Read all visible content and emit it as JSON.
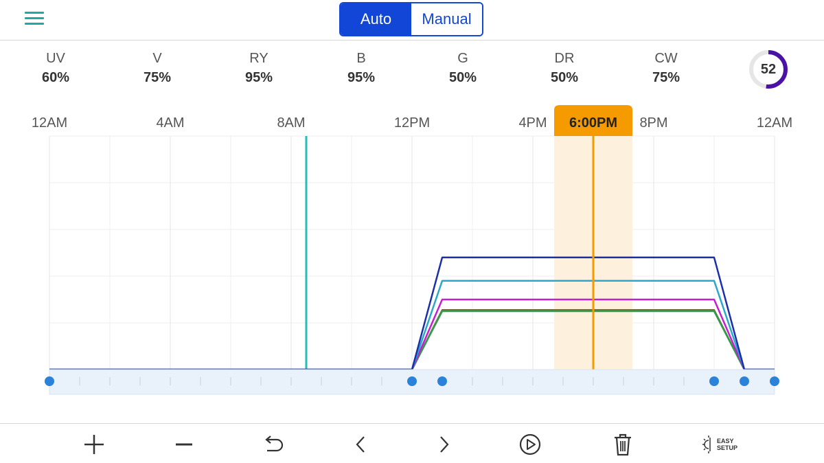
{
  "header": {
    "mode_options": [
      "Auto",
      "Manual"
    ],
    "selected_mode": "Auto"
  },
  "channels": [
    {
      "name": "UV",
      "value": "60%"
    },
    {
      "name": "V",
      "value": "75%"
    },
    {
      "name": "RY",
      "value": "95%"
    },
    {
      "name": "B",
      "value": "95%"
    },
    {
      "name": "G",
      "value": "50%"
    },
    {
      "name": "DR",
      "value": "50%"
    },
    {
      "name": "CW",
      "value": "75%"
    }
  ],
  "overall_intensity": {
    "value": "52",
    "fraction": 0.52,
    "ring_color": "#4b12a6"
  },
  "timeline": {
    "tick_labels": [
      "12AM",
      "4AM",
      "8AM",
      "12PM",
      "4PM",
      "6:00PM",
      "8PM",
      "12AM"
    ],
    "current_time_label": "6:00PM",
    "cursor_color": "#f59b00",
    "current_time_marker_color": "#26bdb6"
  },
  "chart_data": {
    "type": "line",
    "x_unit": "hour of day",
    "xlim": [
      0,
      24
    ],
    "ylim": [
      0,
      100
    ],
    "x_ticks": [
      {
        "hour": 0,
        "label": "12AM"
      },
      {
        "hour": 4,
        "label": "4AM"
      },
      {
        "hour": 8,
        "label": "8AM"
      },
      {
        "hour": 12,
        "label": "12PM"
      },
      {
        "hour": 16,
        "label": "4PM"
      },
      {
        "hour": 20,
        "label": "8PM"
      },
      {
        "hour": 24,
        "label": "12AM"
      }
    ],
    "grid": true,
    "cursor_hour": 18,
    "now_marker_hour": 8.5,
    "series": [
      {
        "color": "#1b2fa8",
        "x": [
          0,
          12,
          13,
          22,
          23,
          24
        ],
        "y": [
          0,
          0,
          48,
          48,
          0,
          0
        ]
      },
      {
        "color": "#2aa7c9",
        "x": [
          0,
          12,
          13,
          22,
          23,
          24
        ],
        "y": [
          0,
          0,
          38,
          38,
          0,
          0
        ]
      },
      {
        "color": "#c21fd1",
        "x": [
          0,
          12,
          13,
          22,
          23,
          24
        ],
        "y": [
          0,
          0,
          30,
          30,
          0,
          0
        ]
      },
      {
        "color": "#2f9d4a",
        "x": [
          0,
          12,
          13,
          22,
          23,
          24
        ],
        "y": [
          0,
          0,
          25,
          25,
          0,
          0
        ]
      },
      {
        "color": "#7a6a3a",
        "x": [
          0,
          12,
          13,
          22,
          23,
          24
        ],
        "y": [
          0,
          0,
          25.5,
          25.5,
          0,
          0
        ]
      }
    ],
    "keyframe_hours": [
      0,
      12,
      13,
      22,
      23,
      24
    ]
  },
  "toolbar": {
    "icons": [
      "add-icon",
      "remove-icon",
      "undo-icon",
      "chevron-left-icon",
      "chevron-right-icon",
      "play-icon",
      "trash-icon",
      "easy-setup-icon"
    ],
    "easy_setup_line1": "EASY",
    "easy_setup_line2": "SETUP"
  }
}
